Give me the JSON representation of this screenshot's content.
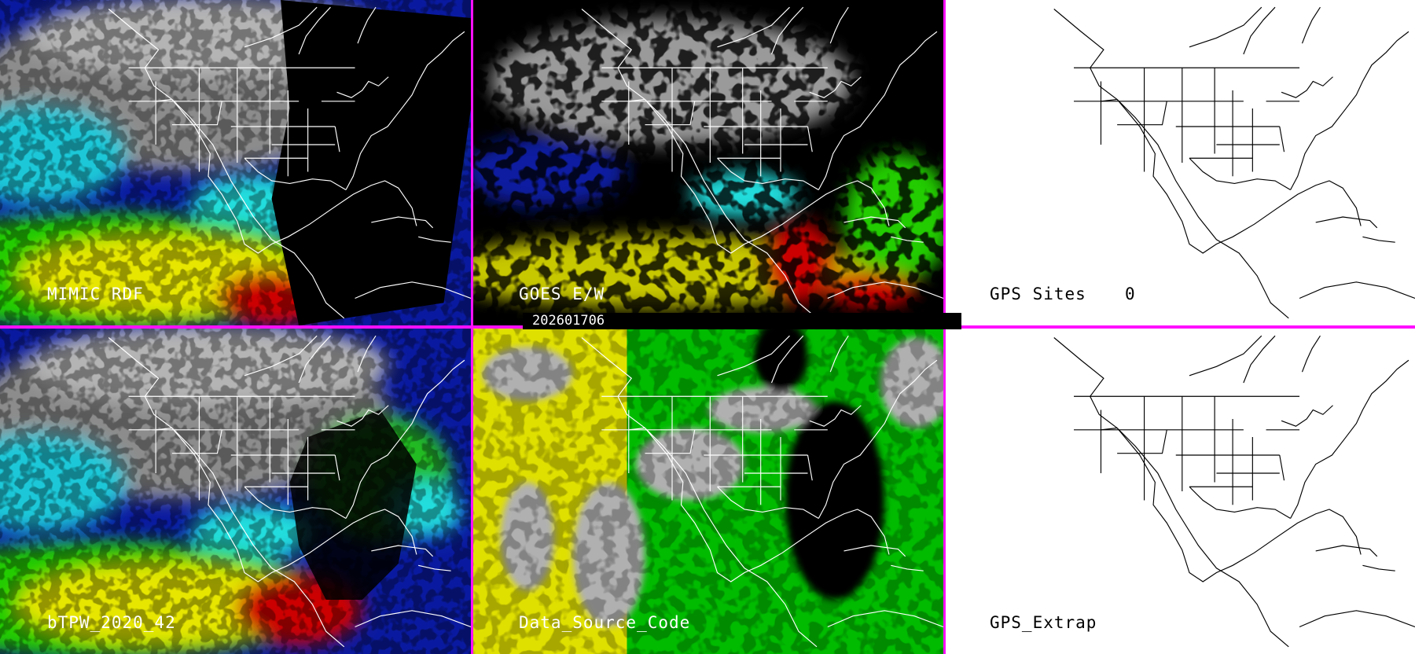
{
  "panels": [
    {
      "label": "MIMIC RDF"
    },
    {
      "label": "GOES E/W"
    },
    {
      "label": "GPS Sites",
      "count": "0"
    },
    {
      "label": "bTPW_2020_42"
    },
    {
      "label": "Data_Source_Code"
    },
    {
      "label": "GPS_Extrap"
    }
  ],
  "timestamp": "202601706",
  "colors": {
    "separator": "#ff10ff",
    "high_tpw": "#cc0000",
    "mid_high_tpw": "#e6e600",
    "mid_tpw": "#22cc00",
    "low_mid_tpw": "#22dddd",
    "low_tpw": "#0a1aa0",
    "dry_gray": "#8c8c8c",
    "no_data": "#000000",
    "source_a": "#e0e000",
    "source_b": "#00bb00",
    "source_missing": "#b0b0b0"
  }
}
